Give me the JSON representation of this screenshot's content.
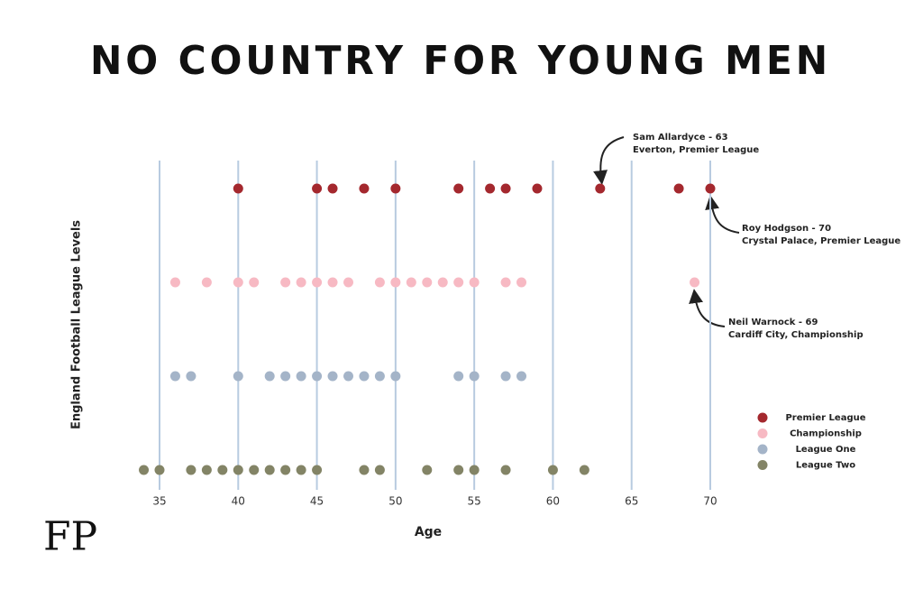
{
  "chart_data": {
    "type": "scatter",
    "title": "NO COUNTRY FOR YOUNG MEN",
    "x_label": "Age",
    "y_label": "England Football League Levels",
    "logo": "FP",
    "xlim": [
      33,
      73
    ],
    "xticks": [
      35,
      40,
      45,
      50,
      55,
      60,
      65,
      70
    ],
    "grid": true,
    "legend": "right",
    "series": [
      {
        "name": "Premier League",
        "color": "#a4282e",
        "values": [
          40,
          45,
          46,
          48,
          50,
          54,
          56,
          57,
          59,
          63,
          68,
          70
        ]
      },
      {
        "name": "Championship",
        "color": "#f7b9c3",
        "values": [
          36,
          38,
          40,
          41,
          43,
          44,
          45,
          46,
          47,
          49,
          50,
          51,
          52,
          53,
          54,
          55,
          57,
          58,
          69
        ]
      },
      {
        "name": "League One",
        "color": "#a4b4c8",
        "values": [
          36,
          37,
          40,
          42,
          43,
          44,
          45,
          46,
          47,
          48,
          49,
          50,
          54,
          55,
          57,
          58
        ]
      },
      {
        "name": "League Two",
        "color": "#838466",
        "values": [
          34,
          35,
          37,
          38,
          39,
          40,
          41,
          42,
          43,
          44,
          45,
          48,
          49,
          52,
          54,
          55,
          57,
          60,
          62
        ]
      }
    ],
    "annotations": [
      [
        "Sam Allardyce - 63",
        "Everton, Premier League"
      ],
      [
        "Roy Hodgson - 70",
        "Crystal Palace, Premier League"
      ],
      [
        "Neil Warnock - 69",
        "Cardiff City, Championship"
      ]
    ]
  }
}
